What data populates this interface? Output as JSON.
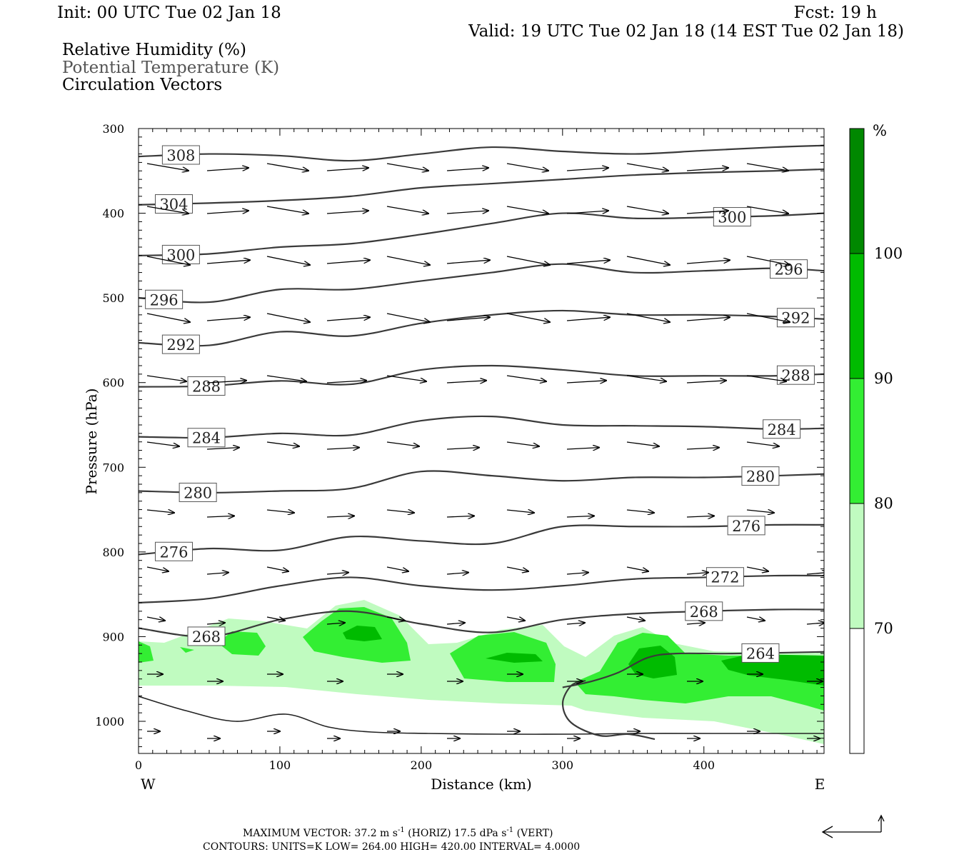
{
  "header": {
    "init": "Init: 00 UTC Tue 02 Jan 18",
    "fcst": "Fcst:   19 h",
    "valid": "Valid: 19 UTC Tue 02 Jan 18 (14 EST Tue 02 Jan 18)",
    "fields": [
      "Relative Humidity (%)",
      "Potential Temperature (K)",
      "Circulation Vectors"
    ]
  },
  "footer": {
    "line1_prefix": "MAXIMUM VECTOR:  37.2 m s",
    "line1_exp1": "-1",
    "line1_mid": " (HORIZ)         17.5 dPa s",
    "line1_exp2": "-1",
    "line1_suffix": " (VERT)",
    "line2": "CONTOURS:  UNITS=K  LOW=  264.00        HIGH=  420.00        INTERVAL=     4.0000"
  },
  "colors": {
    "rh_70_80": "#c0fbc0",
    "rh_80_90": "#33ee33",
    "rh_90_100": "#00bb00",
    "rh_100": "#008800",
    "theta": "#3a3a3a"
  },
  "chart_data": {
    "type": "heatmap",
    "title": "",
    "xlabel": "Distance (km)",
    "ylabel": "Pressure (hPa)",
    "xlim": [
      0,
      485
    ],
    "ylim": [
      1040,
      300
    ],
    "y_scale": "linear (pressure decreasing upward)",
    "x_ticks": [
      "0",
      "100",
      "200",
      "300",
      "400"
    ],
    "y_ticks": [
      "300",
      "400",
      "500",
      "600",
      "700",
      "800",
      "900",
      "1000"
    ],
    "x_ends": {
      "left": "W",
      "right": "E"
    },
    "colorbar": {
      "unit": "%",
      "levels": [
        "70",
        "80",
        "90",
        "100"
      ]
    },
    "theta_contours": [
      {
        "label": "308",
        "x": [
          0,
          50,
          100,
          150,
          200,
          250,
          300,
          350,
          400,
          450,
          485
        ],
        "y": [
          333,
          330,
          332,
          338,
          330,
          322,
          327,
          330,
          326,
          322,
          320
        ]
      },
      {
        "label": "304",
        "x": [
          0,
          50,
          100,
          150,
          200,
          250,
          300,
          350,
          400,
          450,
          485
        ],
        "y": [
          390,
          388,
          385,
          380,
          370,
          365,
          360,
          355,
          352,
          350,
          348
        ]
      },
      {
        "label": "300",
        "x": [
          0,
          50,
          100,
          150,
          200,
          250,
          300,
          350,
          400,
          450,
          485
        ],
        "y": [
          450,
          448,
          440,
          436,
          425,
          412,
          400,
          406,
          405,
          403,
          400
        ]
      },
      {
        "label": "296",
        "x": [
          0,
          50,
          100,
          150,
          200,
          250,
          300,
          350,
          400,
          450,
          485
        ],
        "y": [
          500,
          505,
          490,
          490,
          480,
          470,
          460,
          470,
          468,
          465,
          468
        ]
      },
      {
        "label": "292",
        "x": [
          0,
          50,
          100,
          150,
          200,
          250,
          300,
          350,
          400,
          450,
          485
        ],
        "y": [
          553,
          556,
          540,
          545,
          530,
          520,
          515,
          520,
          520,
          522,
          525
        ]
      },
      {
        "label": "288",
        "x": [
          0,
          50,
          100,
          150,
          200,
          250,
          300,
          350,
          400,
          450,
          485
        ],
        "y": [
          605,
          604,
          598,
          602,
          585,
          580,
          585,
          592,
          592,
          592,
          590
        ]
      },
      {
        "label": "284",
        "x": [
          0,
          50,
          100,
          150,
          200,
          250,
          300,
          350,
          400,
          450,
          485
        ],
        "y": [
          664,
          665,
          660,
          662,
          645,
          640,
          650,
          651,
          652,
          655,
          654
        ]
      },
      {
        "label": "280",
        "x": [
          0,
          50,
          100,
          150,
          200,
          250,
          300,
          350,
          400,
          450,
          485
        ],
        "y": [
          728,
          730,
          728,
          725,
          705,
          710,
          716,
          712,
          712,
          710,
          708
        ]
      },
      {
        "label": "276",
        "x": [
          0,
          50,
          100,
          150,
          200,
          250,
          300,
          350,
          400,
          450,
          485
        ],
        "y": [
          803,
          796,
          798,
          782,
          787,
          790,
          770,
          770,
          770,
          768,
          768
        ]
      },
      {
        "label": "272",
        "x": [
          0,
          50,
          100,
          150,
          200,
          250,
          300,
          350,
          400,
          450,
          485
        ],
        "y": [
          860,
          855,
          840,
          830,
          840,
          845,
          840,
          832,
          830,
          828,
          828
        ]
      },
      {
        "label": "268",
        "x": [
          0,
          50,
          100,
          150,
          200,
          250,
          300,
          350,
          400,
          450,
          485
        ],
        "y": [
          890,
          900,
          880,
          870,
          885,
          895,
          880,
          873,
          870,
          868,
          868
        ]
      },
      {
        "label": "264",
        "x": [
          300,
          320,
          340,
          360,
          380,
          420,
          485
        ],
        "y": [
          960,
          953,
          942,
          925,
          920,
          920,
          918
        ]
      }
    ]
  }
}
